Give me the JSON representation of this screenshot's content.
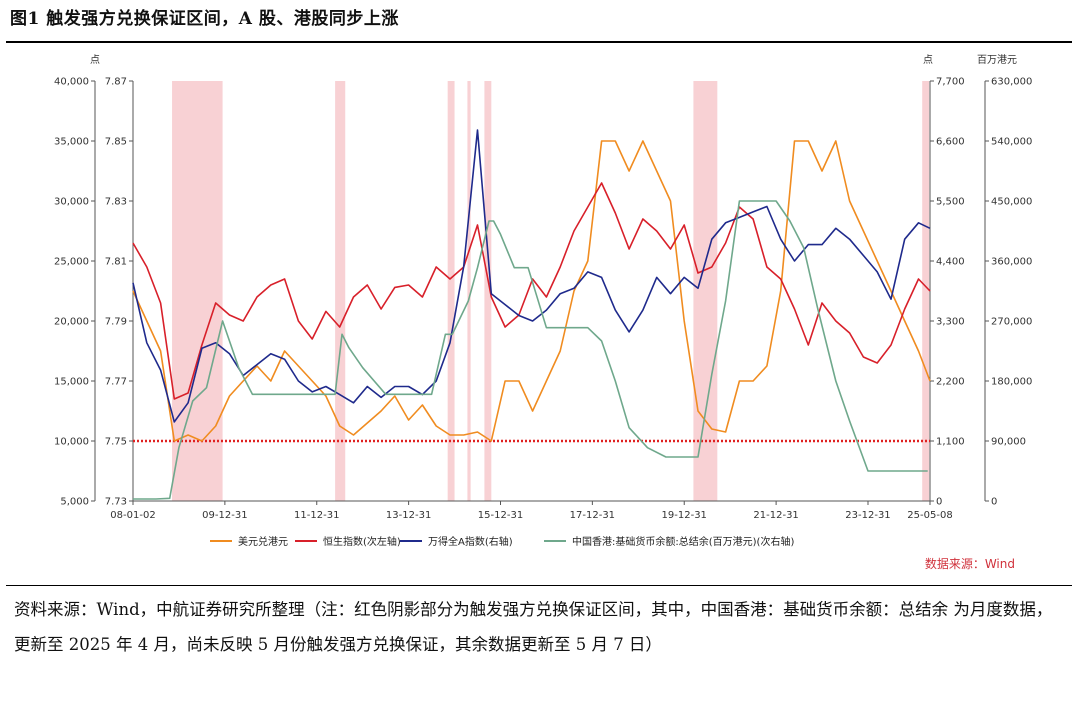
{
  "figure": {
    "title": "图1  触发强方兑换保证区间，A 股、港股同步上涨",
    "note": "资料来源：Wind，中航证券研究所整理（注：红色阴影部分为触发强方兑换保证区间，其中，中国香港：基础货币余额：总结余 为月度数据，更新至 2025 年 4 月，尚未反映 5 月份触发强方兑换保证，其余数据更新至 5 月 7 日）",
    "source_label": "数据来源：Wind"
  },
  "chart_data": {
    "type": "line",
    "x_ticks": [
      "08-01-02",
      "09-12-31",
      "11-12-31",
      "13-12-31",
      "15-12-31",
      "17-12-31",
      "19-12-31",
      "21-12-31",
      "23-12-31",
      "25-05-08"
    ],
    "x_tick_years": [
      2008.0,
      2010.0,
      2012.0,
      2014.0,
      2016.0,
      2018.0,
      2020.0,
      2022.0,
      2024.0,
      2025.35
    ],
    "x_range": [
      2008.0,
      2025.35
    ],
    "axes": {
      "left_outer": {
        "unit": "点",
        "ticks": [
          "40,000",
          "35,000",
          "30,000",
          "25,000",
          "20,000",
          "15,000",
          "10,000",
          "5,000"
        ],
        "range": [
          5000,
          40000
        ]
      },
      "left_inner": {
        "unit": "",
        "ticks": [
          "7.87",
          "7.85",
          "7.83",
          "7.81",
          "7.79",
          "7.77",
          "7.75",
          "7.73"
        ],
        "range": [
          7.73,
          7.87
        ]
      },
      "right_inner": {
        "unit": "点",
        "ticks": [
          "7,700",
          "6,600",
          "5,500",
          "4,400",
          "3,300",
          "2,200",
          "1,100",
          "0"
        ],
        "range": [
          0,
          7700
        ]
      },
      "right_outer": {
        "unit": "百万港元",
        "ticks": [
          "630,000",
          "540,000",
          "450,000",
          "360,000",
          "270,000",
          "180,000",
          "90,000",
          "0"
        ],
        "range": [
          0,
          630000
        ]
      }
    },
    "shaded_periods": [
      [
        2008.85,
        2009.95
      ],
      [
        2012.4,
        2012.62
      ],
      [
        2014.85,
        2015.0
      ],
      [
        2015.28,
        2015.35
      ],
      [
        2015.65,
        2015.8
      ],
      [
        2020.2,
        2020.72
      ],
      [
        2025.18,
        2025.33
      ]
    ],
    "reference_line": {
      "axis": "left_inner",
      "value": 7.75,
      "color": "#e02020"
    },
    "series": [
      {
        "name": "美元兑港元",
        "axis": "left_inner",
        "color": "#f08c20",
        "x": [
          2008.0,
          2008.3,
          2008.6,
          2008.9,
          2009.2,
          2009.5,
          2009.8,
          2010.1,
          2010.4,
          2010.7,
          2011.0,
          2011.3,
          2011.6,
          2011.9,
          2012.2,
          2012.5,
          2012.8,
          2013.1,
          2013.4,
          2013.7,
          2014.0,
          2014.3,
          2014.6,
          2014.9,
          2015.2,
          2015.5,
          2015.8,
          2016.1,
          2016.4,
          2016.7,
          2017.0,
          2017.3,
          2017.6,
          2017.9,
          2018.2,
          2018.5,
          2018.8,
          2019.1,
          2019.4,
          2019.7,
          2020.0,
          2020.3,
          2020.6,
          2020.9,
          2021.2,
          2021.5,
          2021.8,
          2022.1,
          2022.4,
          2022.7,
          2023.0,
          2023.3,
          2023.6,
          2023.9,
          2024.2,
          2024.5,
          2024.8,
          2025.1,
          2025.35
        ],
        "y": [
          7.8,
          7.79,
          7.78,
          7.75,
          7.752,
          7.75,
          7.755,
          7.765,
          7.77,
          7.775,
          7.77,
          7.78,
          7.775,
          7.77,
          7.765,
          7.755,
          7.752,
          7.756,
          7.76,
          7.765,
          7.757,
          7.762,
          7.755,
          7.752,
          7.752,
          7.753,
          7.75,
          7.77,
          7.77,
          7.76,
          7.77,
          7.78,
          7.8,
          7.81,
          7.85,
          7.85,
          7.84,
          7.85,
          7.84,
          7.83,
          7.79,
          7.76,
          7.754,
          7.753,
          7.77,
          7.77,
          7.775,
          7.8,
          7.85,
          7.85,
          7.84,
          7.85,
          7.83,
          7.82,
          7.81,
          7.8,
          7.79,
          7.78,
          7.77
        ]
      },
      {
        "name": "恒生指数(次左轴)",
        "axis": "left_outer",
        "color": "#d8202a",
        "x": [
          2008.0,
          2008.3,
          2008.6,
          2008.9,
          2009.2,
          2009.5,
          2009.8,
          2010.1,
          2010.4,
          2010.7,
          2011.0,
          2011.3,
          2011.6,
          2011.9,
          2012.2,
          2012.5,
          2012.8,
          2013.1,
          2013.4,
          2013.7,
          2014.0,
          2014.3,
          2014.6,
          2014.9,
          2015.2,
          2015.5,
          2015.8,
          2016.1,
          2016.4,
          2016.7,
          2017.0,
          2017.3,
          2017.6,
          2017.9,
          2018.2,
          2018.5,
          2018.8,
          2019.1,
          2019.4,
          2019.7,
          2020.0,
          2020.3,
          2020.6,
          2020.9,
          2021.2,
          2021.5,
          2021.8,
          2022.1,
          2022.4,
          2022.7,
          2023.0,
          2023.3,
          2023.6,
          2023.9,
          2024.2,
          2024.5,
          2024.8,
          2025.1,
          2025.35
        ],
        "y": [
          26500,
          24500,
          21500,
          13500,
          14000,
          18000,
          21500,
          20500,
          20000,
          22000,
          23000,
          23500,
          20000,
          18500,
          20800,
          19500,
          22000,
          23000,
          21000,
          22800,
          23000,
          22000,
          24500,
          23500,
          24500,
          28000,
          22000,
          19500,
          20500,
          23500,
          22000,
          24500,
          27500,
          29500,
          31500,
          29000,
          26000,
          28500,
          27500,
          26000,
          28000,
          24000,
          24500,
          26500,
          29500,
          28500,
          24500,
          23500,
          21000,
          18000,
          21500,
          20000,
          19000,
          17000,
          16500,
          18000,
          21000,
          23500,
          22500
        ]
      },
      {
        "name": "万得全A指数(右轴)",
        "axis": "right_inner",
        "color": "#1f2a8c",
        "x": [
          2008.0,
          2008.3,
          2008.6,
          2008.9,
          2009.2,
          2009.5,
          2009.8,
          2010.1,
          2010.4,
          2010.7,
          2011.0,
          2011.3,
          2011.6,
          2011.9,
          2012.2,
          2012.5,
          2012.8,
          2013.1,
          2013.4,
          2013.7,
          2014.0,
          2014.3,
          2014.6,
          2014.9,
          2015.2,
          2015.5,
          2015.8,
          2016.1,
          2016.4,
          2016.7,
          2017.0,
          2017.3,
          2017.6,
          2017.9,
          2018.2,
          2018.5,
          2018.8,
          2019.1,
          2019.4,
          2019.7,
          2020.0,
          2020.3,
          2020.6,
          2020.9,
          2021.2,
          2021.5,
          2021.8,
          2022.1,
          2022.4,
          2022.7,
          2023.0,
          2023.3,
          2023.6,
          2023.9,
          2024.2,
          2024.5,
          2024.8,
          2025.1,
          2025.35
        ],
        "y": [
          4000,
          2900,
          2400,
          1450,
          1800,
          2800,
          2900,
          2700,
          2300,
          2500,
          2700,
          2600,
          2200,
          2000,
          2100,
          1950,
          1800,
          2100,
          1900,
          2100,
          2100,
          1950,
          2200,
          2900,
          4300,
          6800,
          3800,
          3600,
          3400,
          3300,
          3500,
          3800,
          3900,
          4200,
          4100,
          3500,
          3100,
          3500,
          4100,
          3800,
          4100,
          3900,
          4800,
          5100,
          5200,
          5300,
          5400,
          4800,
          4400,
          4700,
          4700,
          5000,
          4800,
          4500,
          4200,
          3700,
          4800,
          5100,
          5000
        ]
      },
      {
        "name": "中国香港:基础货币余额:总结余(百万港元)(次右轴)",
        "axis": "right_outer",
        "color": "#6fa88c",
        "x": [
          2008.0,
          2008.5,
          2008.8,
          2009.0,
          2009.3,
          2009.6,
          2009.95,
          2010.3,
          2010.6,
          2011.0,
          2012.0,
          2012.4,
          2012.55,
          2012.7,
          2013.0,
          2013.5,
          2014.0,
          2014.5,
          2014.8,
          2014.95,
          2015.3,
          2015.5,
          2015.75,
          2015.85,
          2016.0,
          2016.3,
          2016.6,
          2017.0,
          2017.5,
          2017.9,
          2018.2,
          2018.5,
          2018.8,
          2019.2,
          2019.6,
          2020.0,
          2020.3,
          2020.6,
          2020.9,
          2021.2,
          2021.6,
          2022.0,
          2022.3,
          2022.6,
          2022.9,
          2023.3,
          2023.6,
          2024.0,
          2024.6,
          2025.0,
          2025.3
        ],
        "y": [
          3000,
          3000,
          4000,
          80000,
          150000,
          170000,
          270000,
          200000,
          160000,
          160000,
          160000,
          160000,
          250000,
          230000,
          200000,
          160000,
          160000,
          160000,
          250000,
          250000,
          300000,
          350000,
          420000,
          420000,
          400000,
          350000,
          350000,
          260000,
          260000,
          260000,
          240000,
          180000,
          110000,
          80000,
          66000,
          66000,
          66000,
          190000,
          300000,
          450000,
          450000,
          450000,
          420000,
          380000,
          290000,
          180000,
          120000,
          45000,
          45000,
          45000,
          45000
        ]
      }
    ]
  }
}
